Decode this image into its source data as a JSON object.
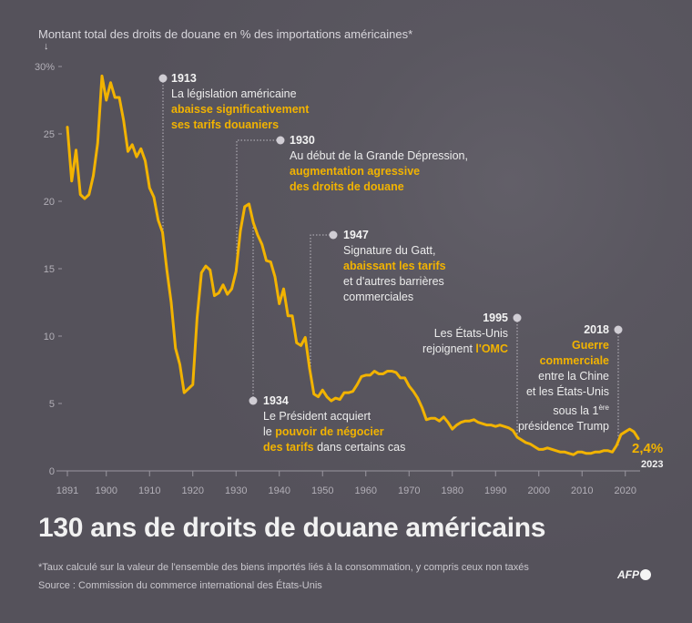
{
  "header": {
    "ylabel": "Montant total des droits de douane en % des importations américaines*",
    "arrow": "↓"
  },
  "title": "130 ans de droits de douane américains",
  "footnote": "*Taux calculé sur la valeur de l'ensemble des biens importés liés à la consommation, y compris ceux non taxés",
  "source": "Source : Commission du commerce international des États-Unis",
  "logo": "AFP",
  "colors": {
    "line": "#f2b300",
    "background": "#57545d",
    "text": "#ececec",
    "axis": "#9a97a0"
  },
  "final_label": {
    "value": "2,4%",
    "year": "2023"
  },
  "annotations": [
    {
      "year": "1913",
      "lines": [
        [
          {
            "t": "La législation américaine"
          }
        ],
        [
          {
            "t": "abaisse significativement",
            "hl": true
          }
        ],
        [
          {
            "t": "ses tarifs douaniers",
            "hl": true
          }
        ]
      ]
    },
    {
      "year": "1930",
      "lines": [
        [
          {
            "t": "Au début de la Grande Dépression,"
          }
        ],
        [
          {
            "t": "augmentation agressive",
            "hl": true
          }
        ],
        [
          {
            "t": "des droits de douane",
            "hl": true
          }
        ]
      ]
    },
    {
      "year": "1947",
      "lines": [
        [
          {
            "t": "Signature du Gatt,"
          }
        ],
        [
          {
            "t": "abaissant les tarifs",
            "hl": true
          }
        ],
        [
          {
            "t": "et d'autres barrières"
          }
        ],
        [
          {
            "t": "commerciales"
          }
        ]
      ]
    },
    {
      "year": "1934",
      "lines": [
        [
          {
            "t": "Le Président acquiert"
          }
        ],
        [
          {
            "t": "le "
          },
          {
            "t": "pouvoir de négocier",
            "hl": true
          }
        ],
        [
          {
            "t": "des tarifs",
            "hl": true
          },
          {
            "t": " dans certains cas"
          }
        ]
      ]
    },
    {
      "year": "1995",
      "lines": [
        [
          {
            "t": "Les États-Unis"
          }
        ],
        [
          {
            "t": "rejoignent "
          },
          {
            "t": "l'OMC",
            "hl": true
          }
        ]
      ]
    },
    {
      "year": "2018",
      "lines": [
        [
          {
            "t": "Guerre",
            "hl": true
          }
        ],
        [
          {
            "t": "commerciale",
            "hl": true
          }
        ],
        [
          {
            "t": "entre la Chine"
          }
        ],
        [
          {
            "t": "et les États-Unis"
          }
        ],
        [
          {
            "t": "sous la 1"
          },
          {
            "t": "ère",
            "sup": true
          }
        ],
        [
          {
            "t": "présidence Trump"
          }
        ]
      ]
    }
  ],
  "chart_data": {
    "type": "line",
    "title": "130 ans de droits de douane américains",
    "ylabel": "Montant total des droits de douane en % des importations américaines*",
    "xlabel": "",
    "xlim": [
      1891,
      2023
    ],
    "ylim": [
      0,
      30
    ],
    "grid": false,
    "x_ticks": [
      "1891",
      "1900",
      "1910",
      "1920",
      "1930",
      "1940",
      "1950",
      "1960",
      "1970",
      "1980",
      "1990",
      "2000",
      "2010",
      "2020"
    ],
    "y_ticks": [
      "0",
      "5",
      "10",
      "15",
      "20",
      "25",
      "30%"
    ],
    "x": [
      1891,
      1892,
      1893,
      1894,
      1895,
      1896,
      1897,
      1898,
      1899,
      1900,
      1901,
      1902,
      1903,
      1904,
      1905,
      1906,
      1907,
      1908,
      1909,
      1910,
      1911,
      1912,
      1913,
      1914,
      1915,
      1916,
      1917,
      1918,
      1919,
      1920,
      1921,
      1922,
      1923,
      1924,
      1925,
      1926,
      1927,
      1928,
      1929,
      1930,
      1931,
      1932,
      1933,
      1934,
      1935,
      1936,
      1937,
      1938,
      1939,
      1940,
      1941,
      1942,
      1943,
      1944,
      1945,
      1946,
      1947,
      1948,
      1949,
      1950,
      1951,
      1952,
      1953,
      1954,
      1955,
      1956,
      1957,
      1958,
      1959,
      1960,
      1961,
      1962,
      1963,
      1964,
      1965,
      1966,
      1967,
      1968,
      1969,
      1970,
      1971,
      1972,
      1973,
      1974,
      1975,
      1976,
      1977,
      1978,
      1979,
      1980,
      1981,
      1982,
      1983,
      1984,
      1985,
      1986,
      1987,
      1988,
      1989,
      1990,
      1991,
      1992,
      1993,
      1994,
      1995,
      1996,
      1997,
      1998,
      1999,
      2000,
      2001,
      2002,
      2003,
      2004,
      2005,
      2006,
      2007,
      2008,
      2009,
      2010,
      2011,
      2012,
      2013,
      2014,
      2015,
      2016,
      2017,
      2018,
      2019,
      2020,
      2021,
      2022,
      2023
    ],
    "values": [
      25.5,
      21.5,
      23.8,
      20.5,
      20.2,
      20.5,
      21.9,
      24.3,
      29.3,
      27.5,
      28.8,
      27.7,
      27.7,
      26.0,
      23.7,
      24.2,
      23.3,
      23.9,
      23.0,
      21.0,
      20.3,
      18.6,
      17.7,
      14.9,
      12.5,
      9.1,
      7.9,
      5.8,
      6.1,
      6.4,
      11.4,
      14.7,
      15.2,
      14.9,
      13.0,
      13.2,
      13.8,
      13.1,
      13.5,
      14.8,
      17.8,
      19.6,
      19.8,
      18.4,
      17.5,
      16.8,
      15.6,
      15.5,
      14.4,
      12.4,
      13.5,
      11.5,
      11.5,
      9.5,
      9.3,
      9.9,
      7.6,
      5.7,
      5.5,
      6.0,
      5.5,
      5.2,
      5.4,
      5.3,
      5.8,
      5.8,
      5.9,
      6.4,
      7.0,
      7.1,
      7.1,
      7.4,
      7.2,
      7.2,
      7.4,
      7.4,
      7.3,
      6.9,
      6.9,
      6.3,
      5.9,
      5.4,
      4.7,
      3.8,
      3.9,
      3.9,
      3.7,
      4.0,
      3.6,
      3.1,
      3.4,
      3.6,
      3.7,
      3.7,
      3.8,
      3.6,
      3.5,
      3.4,
      3.4,
      3.3,
      3.4,
      3.3,
      3.2,
      3.0,
      2.5,
      2.3,
      2.1,
      2.0,
      1.8,
      1.6,
      1.6,
      1.7,
      1.6,
      1.5,
      1.4,
      1.4,
      1.3,
      1.2,
      1.4,
      1.4,
      1.3,
      1.3,
      1.4,
      1.4,
      1.5,
      1.5,
      1.4,
      1.9,
      2.7,
      2.9,
      3.1,
      2.9,
      2.4
    ]
  }
}
